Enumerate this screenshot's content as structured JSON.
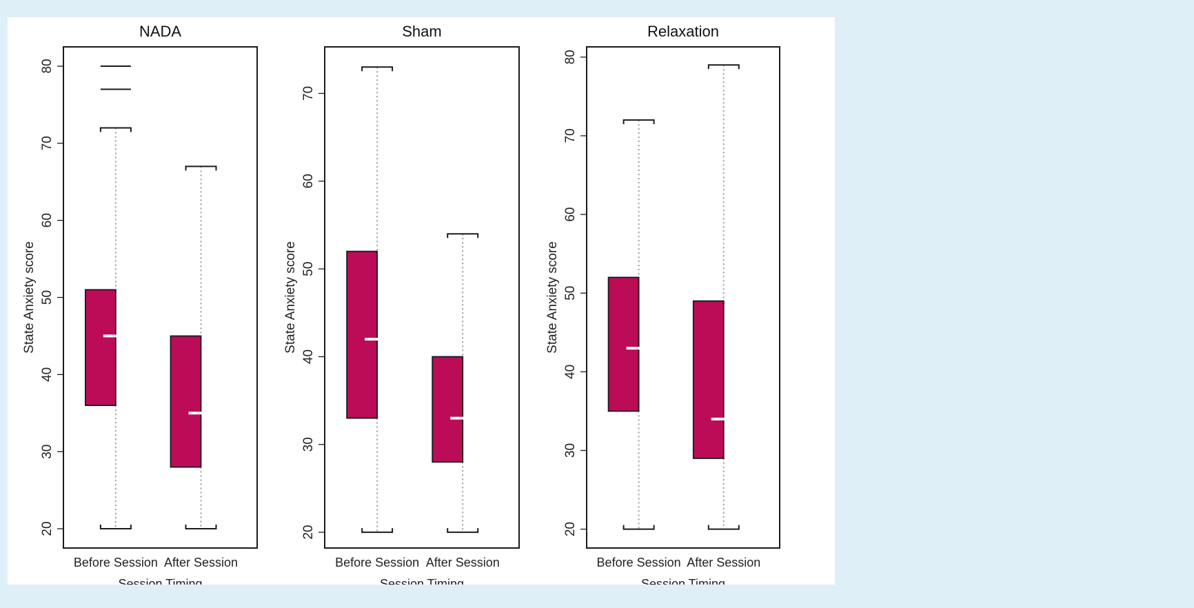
{
  "colors": {
    "page_background": "#deeff7",
    "panel_background": "#ffffff",
    "box_fill": "#bc0c57",
    "median": "#ffffff",
    "frame": "#1a1a1a",
    "whisker_dots": "#9a9a9a"
  },
  "chart_data": [
    {
      "type": "box",
      "title": "NADA",
      "ylabel": "State Anxiety score",
      "xlabel": "Session Timing",
      "categories": [
        "Before Session",
        "After Session"
      ],
      "ylim": [
        17.5,
        82.5
      ],
      "yticks": [
        20,
        30,
        40,
        50,
        60,
        70,
        80
      ],
      "boxes": [
        {
          "label": "Before Session",
          "whisker_low": 20,
          "q1": 36,
          "median": 45,
          "q3": 51,
          "whisker_high": 72,
          "outliers": [
            77,
            80
          ]
        },
        {
          "label": "After Session",
          "whisker_low": 20,
          "q1": 28,
          "median": 35,
          "q3": 45,
          "whisker_high": 67,
          "outliers": []
        }
      ]
    },
    {
      "type": "box",
      "title": "Sham",
      "ylabel": "State Anxiety score",
      "xlabel": "Session Timing",
      "categories": [
        "Before Session",
        "After Session"
      ],
      "ylim": [
        18.2,
        75.3
      ],
      "yticks": [
        20,
        30,
        40,
        50,
        60,
        70
      ],
      "boxes": [
        {
          "label": "Before Session",
          "whisker_low": 20,
          "q1": 33,
          "median": 42,
          "q3": 52,
          "whisker_high": 73,
          "outliers": []
        },
        {
          "label": "After Session",
          "whisker_low": 20,
          "q1": 28,
          "median": 33,
          "q3": 40,
          "whisker_high": 54,
          "outliers": []
        }
      ]
    },
    {
      "type": "box",
      "title": "Relaxation",
      "ylabel": "State Anxiety score",
      "xlabel": "Session Timing",
      "categories": [
        "Before Session",
        "After Session"
      ],
      "ylim": [
        17.6,
        81.3
      ],
      "yticks": [
        20,
        30,
        40,
        50,
        60,
        70,
        80
      ],
      "boxes": [
        {
          "label": "Before Session",
          "whisker_low": 20,
          "q1": 35,
          "median": 43,
          "q3": 52,
          "whisker_high": 72,
          "outliers": []
        },
        {
          "label": "After Session",
          "whisker_low": 20,
          "q1": 29,
          "median": 34,
          "q3": 49,
          "whisker_high": 79,
          "outliers": []
        }
      ]
    }
  ]
}
